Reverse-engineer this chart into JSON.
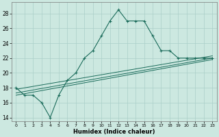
{
  "xlabel": "Humidex (Indice chaleur)",
  "xlim": [
    -0.5,
    23.5
  ],
  "ylim": [
    13.5,
    29.5
  ],
  "yticks": [
    14,
    16,
    18,
    20,
    22,
    24,
    26,
    28
  ],
  "xticks": [
    0,
    1,
    2,
    3,
    4,
    5,
    6,
    7,
    8,
    9,
    10,
    11,
    12,
    13,
    14,
    15,
    16,
    17,
    18,
    19,
    20,
    21,
    22,
    23
  ],
  "bg_color": "#cce8e0",
  "grid_color": "#aacfc8",
  "line_color": "#1a6b5a",
  "line1": {
    "x": [
      0,
      1,
      2,
      3,
      4,
      5,
      6,
      7,
      8,
      9,
      10,
      11,
      12,
      13,
      14,
      15,
      16,
      17,
      18,
      19,
      20,
      21,
      22,
      23
    ],
    "y": [
      18,
      17,
      17,
      16,
      14,
      17,
      19,
      20,
      22,
      23,
      25,
      27,
      28.5,
      27,
      27,
      27,
      25,
      23,
      23,
      22,
      22,
      22,
      22,
      22
    ]
  },
  "line2": {
    "x": [
      0,
      23
    ],
    "y": [
      17.0,
      21.8
    ]
  },
  "line3": {
    "x": [
      0,
      23
    ],
    "y": [
      17.3,
      22.0
    ]
  },
  "line4": {
    "x": [
      0,
      23
    ],
    "y": [
      17.8,
      22.3
    ]
  }
}
